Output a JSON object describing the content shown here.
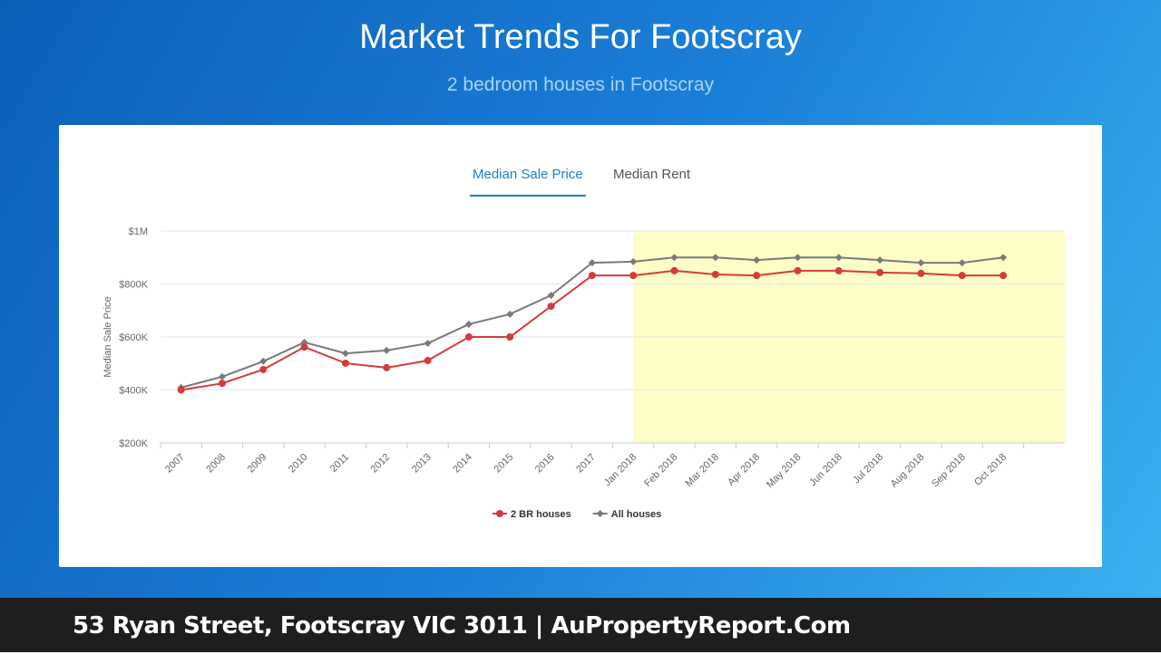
{
  "header": {
    "title": "Market Trends For Footscray",
    "subtitle": "2 bedroom houses in Footscray"
  },
  "tabs": [
    "Median Sale Price",
    "Median Rent"
  ],
  "footer": {
    "text": "53 Ryan Street, Footscray VIC 3011 | AuPropertyReport.Com"
  },
  "chart_data": {
    "type": "line",
    "y_label": "Median Sale Price",
    "categories": [
      "2007",
      "2008",
      "2009",
      "2010",
      "2011",
      "2012",
      "2013",
      "2014",
      "2015",
      "2016",
      "2017",
      "Jan 2018",
      "Feb 2018",
      "Mar 2018",
      "Apr 2018",
      "May 2018",
      "Jun 2018",
      "Jul 2018",
      "Aug 2018",
      "Sep 2018",
      "Oct 2018"
    ],
    "series": [
      {
        "name": "2 BR houses",
        "color": "#d63b3b",
        "marker": "circle",
        "values": [
          400000,
          425000,
          477000,
          562000,
          501000,
          484000,
          511000,
          600000,
          600000,
          716000,
          832000,
          832000,
          850000,
          836000,
          832000,
          850000,
          850000,
          843000,
          840000,
          832000,
          832000
        ]
      },
      {
        "name": "All houses",
        "color": "#7a7a7a",
        "marker": "diamond",
        "values": [
          409000,
          450000,
          508000,
          580000,
          538000,
          549000,
          576000,
          648000,
          686000,
          757000,
          880000,
          884000,
          900000,
          900000,
          890000,
          900000,
          900000,
          890000,
          880000,
          880000,
          900000
        ]
      }
    ],
    "ylim": [
      200000,
      1000000
    ],
    "yticks": [
      {
        "value": 200000,
        "label": "$200K"
      },
      {
        "value": 400000,
        "label": "$400K"
      },
      {
        "value": 600000,
        "label": "$600K"
      },
      {
        "value": 800000,
        "label": "$800K"
      },
      {
        "value": 1000000,
        "label": "$1M"
      }
    ],
    "grid": true,
    "shaded_from": "Jan 2018",
    "shade_color": "#fdfdc8",
    "legend": "bottom"
  }
}
